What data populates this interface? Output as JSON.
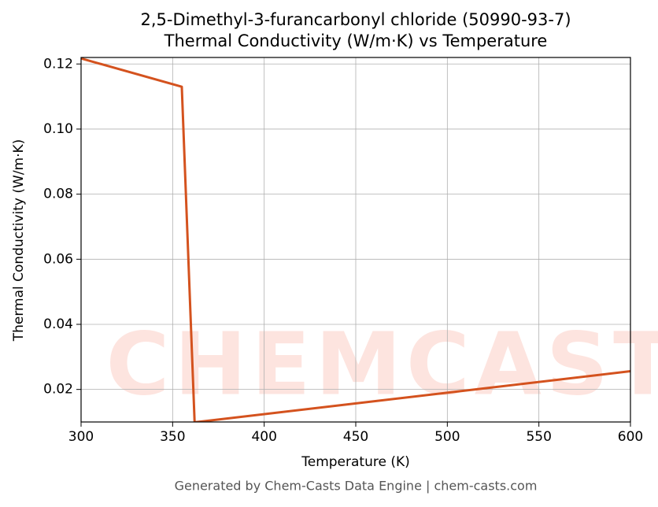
{
  "chart_data": {
    "type": "line",
    "title": "2,5-Dimethyl-3-furancarbonyl chloride (50990-93-7)",
    "subtitle": "Thermal Conductivity (W/m·K) vs Temperature",
    "x_label": "Temperature (K)",
    "y_label": "Thermal Conductivity (W/m·K)",
    "footer": "Generated by Chem-Casts Data Engine | chem-casts.com",
    "watermark": "CHEMCASTS",
    "x": [
      300,
      355,
      362,
      600
    ],
    "series": [
      {
        "name": "Thermal Conductivity",
        "color": "#d4521e",
        "values": [
          0.1217,
          0.113,
          0.0099,
          0.0256
        ]
      }
    ],
    "xlim": [
      300,
      600
    ],
    "xticks": [
      300,
      350,
      400,
      450,
      500,
      550,
      600
    ],
    "ylim": [
      0.01,
      0.122
    ],
    "yticks": [
      0.02,
      0.04,
      0.06,
      0.08,
      {
        "value": 0.1,
        "label": "0.10"
      },
      0.12
    ],
    "grid": true
  }
}
